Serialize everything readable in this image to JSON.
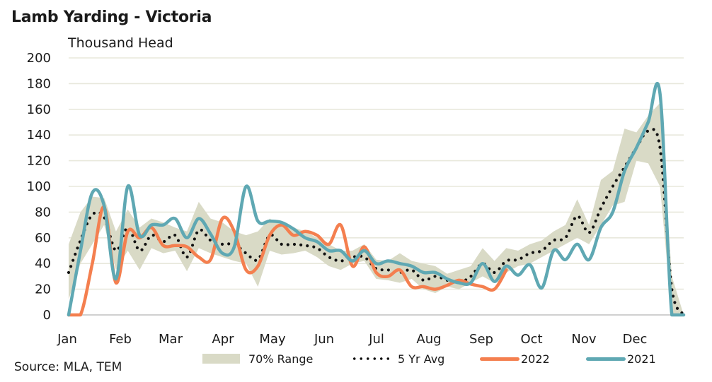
{
  "title": "Lamb Yarding - Victoria",
  "unit_label": "Thousand Head",
  "source": "Source: MLA, TEM",
  "colors": {
    "range": "#d9dac6",
    "avg": "#111111",
    "y2022": "#f47f4f",
    "y2021": "#5fa8b3",
    "grid": "#e8e8dc",
    "axis": "#d0d0d0"
  },
  "chart_data": {
    "type": "line",
    "title": "Lamb Yarding - Victoria",
    "xlabel": "",
    "ylabel": "Thousand Head",
    "ylim": [
      0,
      200
    ],
    "yticks": [
      0,
      20,
      40,
      60,
      80,
      100,
      120,
      140,
      160,
      180,
      200
    ],
    "xtick_labels": [
      "Jan",
      "Feb",
      "Mar",
      "Apr",
      "May",
      "Jun",
      "Jul",
      "Aug",
      "Sep",
      "Oct",
      "Nov",
      "Dec"
    ],
    "x_unit": "week",
    "weeks": 53,
    "grid": true,
    "legend_position": "bottom",
    "series": [
      {
        "name": "70% Range",
        "kind": "band",
        "low": [
          12,
          40,
          55,
          70,
          35,
          50,
          35,
          52,
          48,
          50,
          34,
          52,
          48,
          45,
          42,
          40,
          22,
          50,
          47,
          48,
          50,
          45,
          38,
          35,
          40,
          42,
          28,
          27,
          25,
          28,
          20,
          17,
          22,
          20,
          25,
          30,
          25,
          33,
          38,
          40,
          45,
          50,
          55,
          60,
          55,
          70,
          85,
          88,
          120,
          118,
          100,
          0,
          0
        ],
        "high": [
          55,
          80,
          92,
          91,
          65,
          82,
          68,
          75,
          72,
          68,
          65,
          88,
          75,
          72,
          65,
          62,
          65,
          75,
          70,
          68,
          65,
          60,
          55,
          50,
          50,
          55,
          43,
          42,
          48,
          42,
          40,
          38,
          32,
          35,
          38,
          52,
          42,
          52,
          50,
          55,
          58,
          65,
          70,
          90,
          70,
          105,
          112,
          145,
          142,
          155,
          165,
          30,
          0
        ]
      },
      {
        "name": "5 Yr Avg",
        "kind": "dotted",
        "values": [
          33,
          58,
          78,
          76,
          50,
          68,
          50,
          62,
          57,
          62,
          45,
          66,
          58,
          55,
          55,
          48,
          43,
          62,
          55,
          55,
          54,
          52,
          45,
          42,
          45,
          45,
          36,
          35,
          33,
          35,
          27,
          30,
          27,
          25,
          30,
          40,
          33,
          42,
          43,
          48,
          50,
          58,
          60,
          77,
          64,
          83,
          100,
          115,
          130,
          143,
          130,
          20,
          0
        ]
      },
      {
        "name": "2022",
        "kind": "line",
        "values": [
          0,
          0,
          40,
          84,
          25,
          65,
          60,
          68,
          54,
          54,
          53,
          45,
          43,
          75,
          65,
          35,
          38,
          62,
          70,
          62,
          65,
          62,
          55,
          70,
          38,
          53,
          33,
          30,
          35,
          22,
          22,
          20,
          23,
          27,
          24,
          22,
          20,
          35,
          null,
          null,
          null,
          null,
          null,
          null,
          null,
          null,
          null,
          null,
          null,
          null,
          null,
          null,
          null
        ]
      },
      {
        "name": "2021",
        "kind": "line",
        "values": [
          0,
          50,
          95,
          85,
          28,
          100,
          62,
          70,
          70,
          75,
          60,
          75,
          63,
          48,
          53,
          100,
          73,
          73,
          72,
          67,
          60,
          57,
          50,
          50,
          42,
          50,
          40,
          42,
          40,
          38,
          33,
          33,
          28,
          25,
          25,
          40,
          26,
          38,
          31,
          39,
          21,
          50,
          43,
          55,
          43,
          68,
          80,
          112,
          130,
          150,
          172,
          0,
          0
        ]
      }
    ]
  },
  "legend": {
    "range_label": "70% Range",
    "avg_label": "5 Yr Avg",
    "y2022_label": "2022",
    "y2021_label": "2021"
  }
}
